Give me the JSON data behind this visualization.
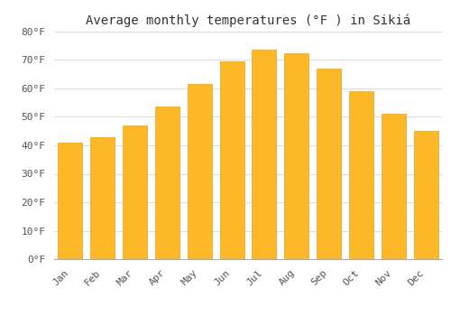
{
  "title": "Average monthly temperatures (°F ) in Sikiá",
  "months": [
    "Jan",
    "Feb",
    "Mar",
    "Apr",
    "May",
    "Jun",
    "Jul",
    "Aug",
    "Sep",
    "Oct",
    "Nov",
    "Dec"
  ],
  "values": [
    41,
    43,
    47,
    53.5,
    61.5,
    69.5,
    73.5,
    72.5,
    67,
    59,
    51,
    45
  ],
  "bar_color": "#FDB827",
  "bar_edge_color": "#E8A020",
  "background_color": "#ffffff",
  "grid_color": "#dddddd",
  "ylim": [
    0,
    80
  ],
  "yticks": [
    0,
    10,
    20,
    30,
    40,
    50,
    60,
    70,
    80
  ],
  "ytick_labels": [
    "0°F",
    "10°F",
    "20°F",
    "30°F",
    "40°F",
    "50°F",
    "60°F",
    "70°F",
    "80°F"
  ],
  "title_fontsize": 10,
  "tick_fontsize": 8,
  "font_family": "monospace",
  "bar_width": 0.75
}
